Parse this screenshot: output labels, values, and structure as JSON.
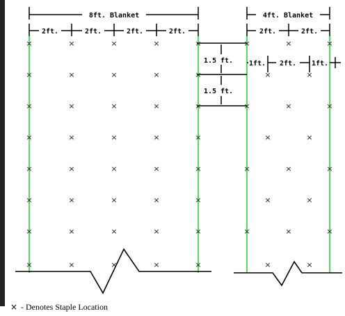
{
  "colors": {
    "seam_line": "#2ecc40",
    "ink": "#000000",
    "frame": "#222222",
    "background": "#ffffff"
  },
  "blanket_8ft": {
    "label": "8ft. Blanket",
    "segments": [
      "2ft.",
      "2ft.",
      "2ft.",
      "2ft."
    ]
  },
  "blanket_4ft": {
    "label": "4ft. Blanket",
    "segments": [
      "2ft.",
      "2ft."
    ],
    "staggered_segments": [
      "1ft.",
      "2ft.",
      "1ft."
    ]
  },
  "spacing": {
    "row_label_1": "1.5 ft.",
    "row_label_2": "1.5 ft."
  },
  "staple_symbol": "×",
  "legend": {
    "symbol": "×",
    "text": "- Denotes Staple Location"
  },
  "icons": {
    "staple": "x-mark-icon",
    "break": "break-line-icon"
  }
}
